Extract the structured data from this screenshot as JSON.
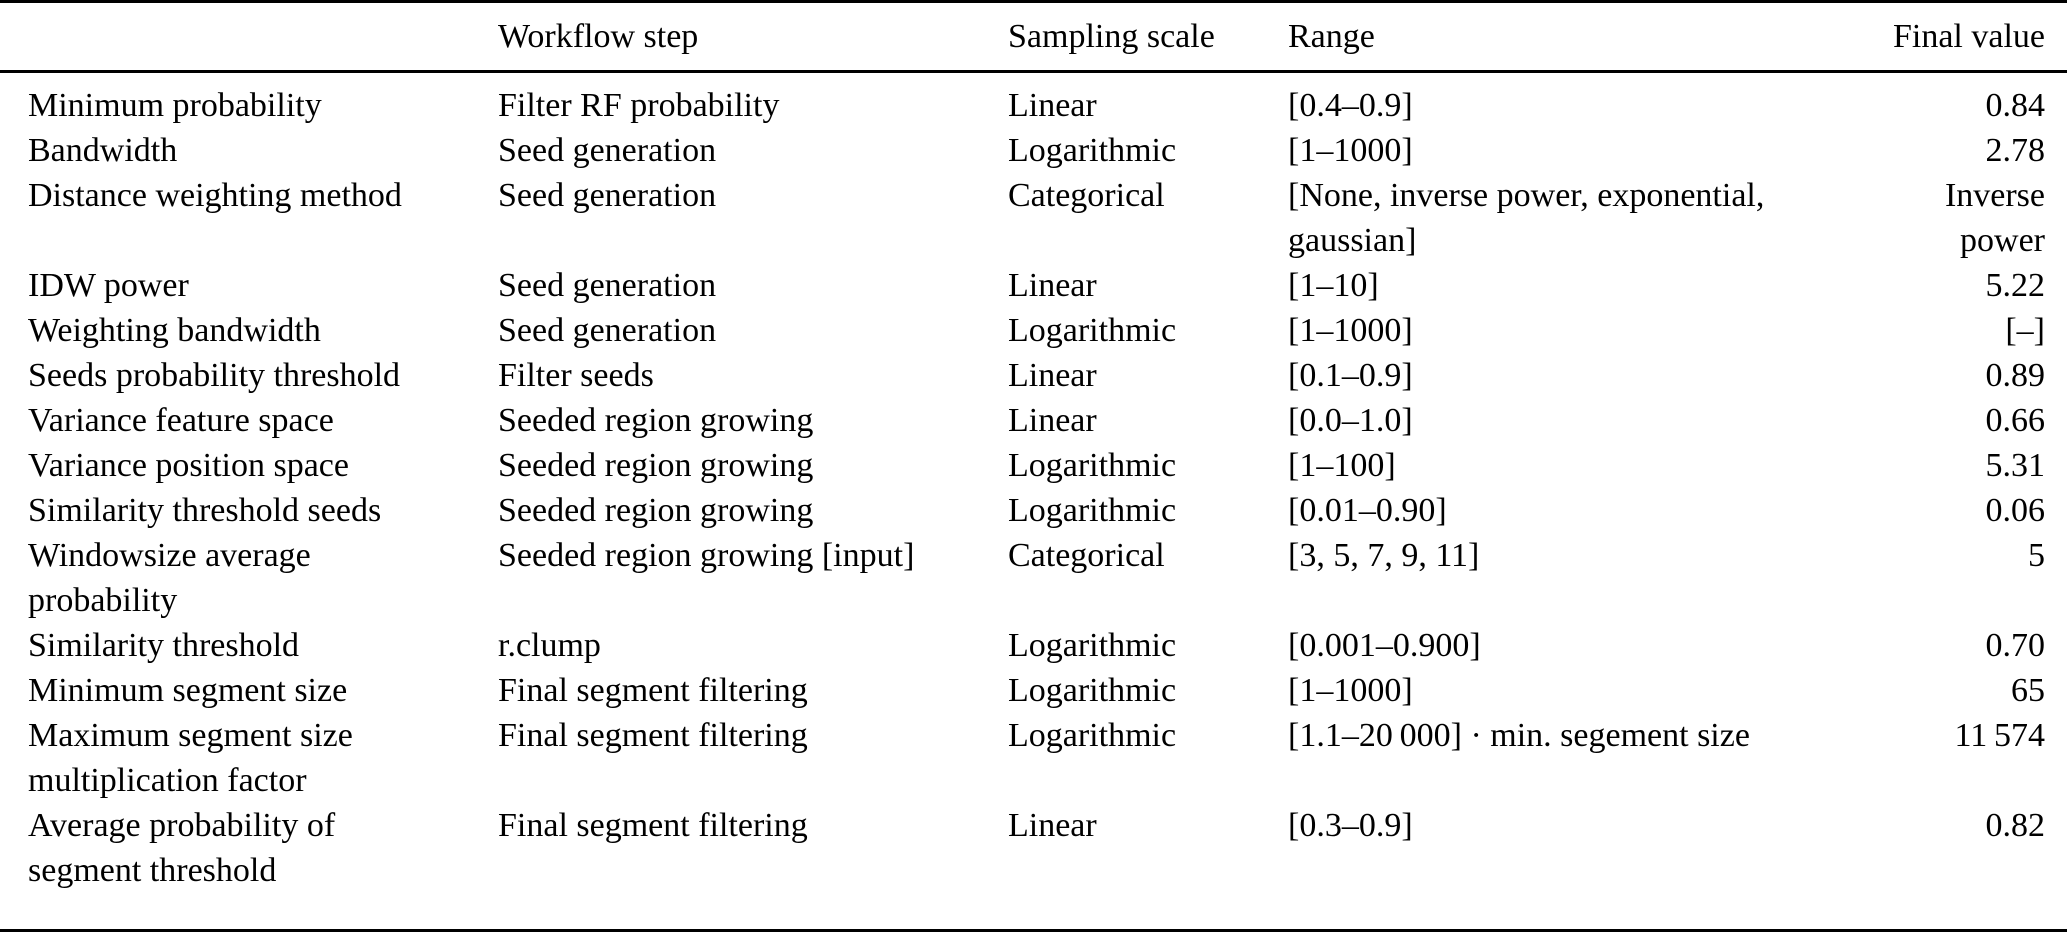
{
  "table": {
    "columns": [
      "",
      "Workflow step",
      "Sampling scale",
      "Range",
      "Final value"
    ],
    "rows": [
      {
        "parameter": "Minimum probability",
        "workflow_step": "Filter RF probability",
        "sampling_scale": "Linear",
        "range": "[0.4–0.9]",
        "final_value": "0.84"
      },
      {
        "parameter": "Bandwidth",
        "workflow_step": "Seed generation",
        "sampling_scale": "Logarithmic",
        "range": "[1–1000]",
        "final_value": "2.78"
      },
      {
        "parameter": "Distance weighting method",
        "workflow_step": "Seed generation",
        "sampling_scale": "Categorical",
        "range": "[None, inverse power, exponential,\ngaussian]",
        "final_value": "Inverse\npower"
      },
      {
        "parameter": "IDW power",
        "workflow_step": "Seed generation",
        "sampling_scale": "Linear",
        "range": "[1–10]",
        "final_value": "5.22"
      },
      {
        "parameter": "Weighting bandwidth",
        "workflow_step": "Seed generation",
        "sampling_scale": "Logarithmic",
        "range": "[1–1000]",
        "final_value": "[–]"
      },
      {
        "parameter": "Seeds probability threshold",
        "workflow_step": "Filter seeds",
        "sampling_scale": "Linear",
        "range": "[0.1–0.9]",
        "final_value": "0.89"
      },
      {
        "parameter": "Variance feature space",
        "workflow_step": "Seeded region growing",
        "sampling_scale": "Linear",
        "range": "[0.0–1.0]",
        "final_value": "0.66"
      },
      {
        "parameter": "Variance position space",
        "workflow_step": "Seeded region growing",
        "sampling_scale": "Logarithmic",
        "range": "[1–100]",
        "final_value": "5.31"
      },
      {
        "parameter": "Similarity threshold seeds",
        "workflow_step": "Seeded region growing",
        "sampling_scale": "Logarithmic",
        "range": "[0.01–0.90]",
        "final_value": "0.06"
      },
      {
        "parameter": "Windowsize average\nprobability",
        "workflow_step": "Seeded region growing [input]",
        "sampling_scale": "Categorical",
        "range": "[3, 5, 7, 9, 11]",
        "final_value": "5"
      },
      {
        "parameter": "Similarity threshold",
        "workflow_step": "r.clump",
        "sampling_scale": "Logarithmic",
        "range": "[0.001–0.900]",
        "final_value": "0.70"
      },
      {
        "parameter": "Minimum segment size",
        "workflow_step": "Final segment filtering",
        "sampling_scale": "Logarithmic",
        "range": "[1–1000]",
        "final_value": "65"
      },
      {
        "parameter": "Maximum segment size\nmultiplication factor",
        "workflow_step": "Final segment filtering",
        "sampling_scale": "Logarithmic",
        "range": "[1.1–20 000] · min. segement size",
        "final_value": "11 574"
      },
      {
        "parameter": "Average probability of\nsegment threshold",
        "workflow_step": "Final segment filtering",
        "sampling_scale": "Linear",
        "range": "[0.3–0.9]",
        "final_value": "0.82"
      }
    ]
  }
}
